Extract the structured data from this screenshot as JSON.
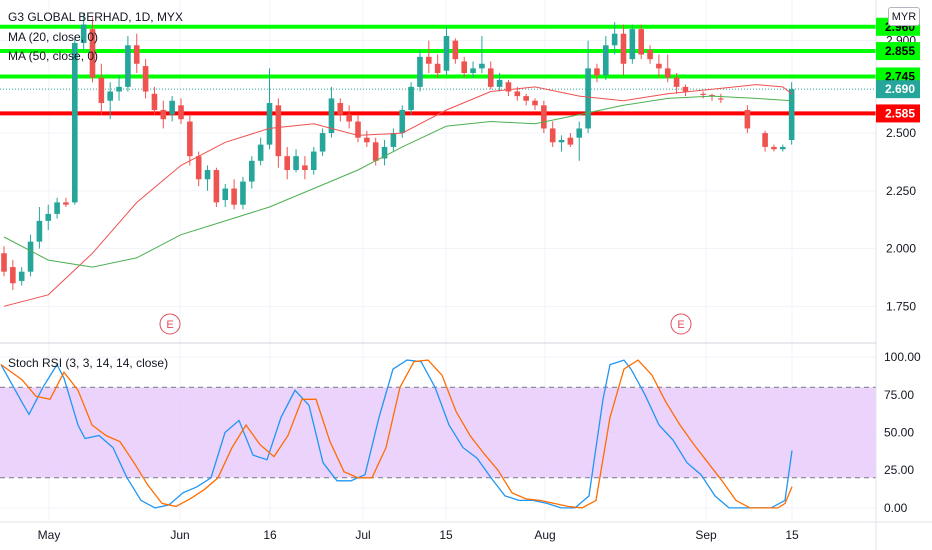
{
  "header": {
    "title": "G3 GLOBAL BERHAD, 1D, MYX",
    "ma20_label": "MA (20, close, 0)",
    "ma50_label": "MA (50, close, 0)",
    "currency": "MYR",
    "rsi_label": "Stoch RSI (3, 3, 14, 14, close)"
  },
  "colors": {
    "up": "#26a69a",
    "down": "#ef5350",
    "ma20": "#f0504f",
    "ma50": "#4caf50",
    "green_level": "#00ff00",
    "red_level": "#ff0000",
    "rsi_k": "#2196f3",
    "rsi_d": "#ff6d00",
    "rsi_band": "#e6c8fb",
    "grid": "#f0f3fa",
    "axis": "#e0e3eb"
  },
  "chart_data": [
    {
      "type": "candlestick",
      "title": "G3 GLOBAL BERHAD, 1D, MYX",
      "y_ticks": [
        "1.750",
        "2.000",
        "2.250",
        "2.500",
        "2.750",
        "2.900"
      ],
      "ylim": [
        1.6,
        3.05
      ],
      "x_ticks": [
        "May",
        "Jun",
        "16",
        "Jul",
        "15",
        "Aug",
        "Sep",
        "15"
      ],
      "price_levels": [
        {
          "label": "2.960",
          "value": 2.96,
          "color": "#00ff00"
        },
        {
          "label": "2.855",
          "value": 2.855,
          "color": "#00ff00"
        },
        {
          "label": "2.745",
          "value": 2.745,
          "color": "#00ff00"
        },
        {
          "label": "2.585",
          "value": 2.585,
          "color": "#ff0000"
        }
      ],
      "last_price": {
        "label": "2.690",
        "value": 2.69
      },
      "earnings_markers": [
        "E",
        "E"
      ],
      "candles": [
        [
          1.98,
          2.01,
          1.88,
          1.9
        ],
        [
          1.92,
          1.95,
          1.82,
          1.85
        ],
        [
          1.86,
          1.92,
          1.84,
          1.9
        ],
        [
          1.9,
          2.06,
          1.88,
          2.03
        ],
        [
          2.03,
          2.18,
          2.0,
          2.12
        ],
        [
          2.12,
          2.19,
          2.08,
          2.15
        ],
        [
          2.15,
          2.22,
          2.13,
          2.2
        ],
        [
          2.2,
          2.22,
          2.18,
          2.19
        ],
        [
          2.2,
          2.92,
          2.19,
          2.89
        ],
        [
          2.89,
          3.02,
          2.86,
          2.97
        ],
        [
          2.95,
          3.0,
          2.72,
          2.74
        ],
        [
          2.74,
          2.8,
          2.58,
          2.63
        ],
        [
          2.64,
          2.72,
          2.56,
          2.68
        ],
        [
          2.68,
          2.75,
          2.64,
          2.7
        ],
        [
          2.7,
          2.92,
          2.68,
          2.88
        ],
        [
          2.88,
          2.93,
          2.76,
          2.8
        ],
        [
          2.79,
          2.82,
          2.65,
          2.68
        ],
        [
          2.67,
          2.7,
          2.58,
          2.6
        ],
        [
          2.6,
          2.64,
          2.52,
          2.56
        ],
        [
          2.58,
          2.66,
          2.55,
          2.64
        ],
        [
          2.62,
          2.65,
          2.54,
          2.56
        ],
        [
          2.55,
          2.58,
          2.36,
          2.4
        ],
        [
          2.4,
          2.42,
          2.27,
          2.3
        ],
        [
          2.3,
          2.36,
          2.25,
          2.34
        ],
        [
          2.34,
          2.35,
          2.18,
          2.2
        ],
        [
          2.21,
          2.28,
          2.18,
          2.26
        ],
        [
          2.26,
          2.3,
          2.17,
          2.19
        ],
        [
          2.19,
          2.31,
          2.17,
          2.29
        ],
        [
          2.29,
          2.4,
          2.26,
          2.38
        ],
        [
          2.38,
          2.48,
          2.36,
          2.45
        ],
        [
          2.45,
          2.78,
          2.43,
          2.63
        ],
        [
          2.62,
          2.65,
          2.35,
          2.4
        ],
        [
          2.4,
          2.44,
          2.3,
          2.34
        ],
        [
          2.34,
          2.43,
          2.33,
          2.4
        ],
        [
          2.36,
          2.4,
          2.3,
          2.34
        ],
        [
          2.34,
          2.44,
          2.32,
          2.42
        ],
        [
          2.42,
          2.52,
          2.4,
          2.5
        ],
        [
          2.5,
          2.7,
          2.48,
          2.65
        ],
        [
          2.63,
          2.65,
          2.55,
          2.58
        ],
        [
          2.58,
          2.62,
          2.52,
          2.55
        ],
        [
          2.55,
          2.58,
          2.46,
          2.48
        ],
        [
          2.48,
          2.51,
          2.44,
          2.46
        ],
        [
          2.46,
          2.48,
          2.36,
          2.38
        ],
        [
          2.39,
          2.47,
          2.36,
          2.44
        ],
        [
          2.44,
          2.52,
          2.42,
          2.5
        ],
        [
          2.5,
          2.62,
          2.48,
          2.6
        ],
        [
          2.6,
          2.72,
          2.58,
          2.7
        ],
        [
          2.7,
          2.86,
          2.68,
          2.83
        ],
        [
          2.83,
          2.9,
          2.76,
          2.8
        ],
        [
          2.8,
          2.84,
          2.74,
          2.76
        ],
        [
          2.77,
          2.96,
          2.75,
          2.92
        ],
        [
          2.9,
          2.91,
          2.8,
          2.82
        ],
        [
          2.81,
          2.83,
          2.74,
          2.76
        ],
        [
          2.76,
          2.81,
          2.74,
          2.78
        ],
        [
          2.78,
          2.92,
          2.76,
          2.8
        ],
        [
          2.78,
          2.81,
          2.69,
          2.7
        ],
        [
          2.7,
          2.76,
          2.68,
          2.73
        ],
        [
          2.72,
          2.73,
          2.66,
          2.68
        ],
        [
          2.68,
          2.7,
          2.64,
          2.66
        ],
        [
          2.66,
          2.67,
          2.62,
          2.64
        ],
        [
          2.64,
          2.65,
          2.6,
          2.62
        ],
        [
          2.62,
          2.64,
          2.5,
          2.52
        ],
        [
          2.52,
          2.55,
          2.44,
          2.46
        ],
        [
          2.46,
          2.49,
          2.42,
          2.47
        ],
        [
          2.48,
          2.5,
          2.44,
          2.45
        ],
        [
          2.48,
          2.55,
          2.38,
          2.52
        ],
        [
          2.52,
          2.9,
          2.5,
          2.78
        ],
        [
          2.78,
          2.8,
          2.72,
          2.75
        ],
        [
          2.75,
          2.92,
          2.73,
          2.88
        ],
        [
          2.88,
          2.98,
          2.84,
          2.93
        ],
        [
          2.93,
          2.97,
          2.75,
          2.8
        ],
        [
          2.82,
          2.97,
          2.8,
          2.95
        ],
        [
          2.95,
          2.97,
          2.82,
          2.84
        ],
        [
          2.86,
          2.88,
          2.8,
          2.82
        ],
        [
          2.8,
          2.84,
          2.74,
          2.78
        ],
        [
          2.78,
          2.84,
          2.72,
          2.74
        ],
        [
          2.74,
          2.76,
          2.67,
          2.7
        ],
        [
          2.7,
          2.71,
          2.66,
          2.68
        ],
        [
          null,
          null,
          null,
          null
        ],
        [
          2.67,
          2.68,
          2.65,
          2.665
        ],
        [
          2.665,
          2.67,
          2.64,
          2.66
        ],
        [
          2.65,
          2.67,
          2.63,
          2.645
        ],
        [
          null,
          null,
          null,
          null
        ],
        [
          null,
          null,
          null,
          null
        ],
        [
          2.6,
          2.62,
          2.5,
          2.52
        ],
        [
          null,
          null,
          null,
          null
        ],
        [
          2.5,
          2.51,
          2.42,
          2.44
        ],
        [
          2.44,
          2.45,
          2.42,
          2.43
        ],
        [
          2.43,
          2.45,
          2.42,
          2.44
        ],
        [
          2.47,
          2.72,
          2.45,
          2.69
        ]
      ],
      "ma20": [
        [
          0,
          1.75
        ],
        [
          5,
          1.8
        ],
        [
          10,
          1.98
        ],
        [
          15,
          2.2
        ],
        [
          20,
          2.36
        ],
        [
          25,
          2.46
        ],
        [
          30,
          2.52
        ],
        [
          35,
          2.54
        ],
        [
          40,
          2.49
        ],
        [
          45,
          2.5
        ],
        [
          50,
          2.6
        ],
        [
          55,
          2.68
        ],
        [
          60,
          2.7
        ],
        [
          65,
          2.66
        ],
        [
          70,
          2.64
        ],
        [
          75,
          2.67
        ],
        [
          80,
          2.69
        ],
        [
          85,
          2.71
        ],
        [
          88,
          2.7
        ],
        [
          89,
          2.67
        ]
      ],
      "ma50": [
        [
          0,
          2.05
        ],
        [
          5,
          1.95
        ],
        [
          10,
          1.92
        ],
        [
          15,
          1.96
        ],
        [
          20,
          2.06
        ],
        [
          25,
          2.12
        ],
        [
          30,
          2.18
        ],
        [
          35,
          2.26
        ],
        [
          40,
          2.34
        ],
        [
          45,
          2.44
        ],
        [
          50,
          2.53
        ],
        [
          55,
          2.55
        ],
        [
          60,
          2.54
        ],
        [
          65,
          2.58
        ],
        [
          70,
          2.62
        ],
        [
          75,
          2.65
        ],
        [
          80,
          2.66
        ],
        [
          85,
          2.65
        ],
        [
          89,
          2.64
        ]
      ]
    },
    {
      "type": "line",
      "title": "Stoch RSI (3, 3, 14, 14, close)",
      "y_ticks": [
        "0.00",
        "25.00",
        "50.00",
        "75.00",
        "100.00"
      ],
      "ylim": [
        -8,
        108
      ],
      "bands": {
        "upper": 80,
        "lower": 20
      },
      "series": [
        {
          "name": "K",
          "values": [
            [
              0,
              95
            ],
            [
              3,
              70
            ],
            [
              4,
              62
            ],
            [
              6,
              80
            ],
            [
              8,
              95
            ],
            [
              9,
              86
            ],
            [
              11,
              55
            ],
            [
              12,
              46
            ],
            [
              14,
              48
            ],
            [
              16,
              40
            ],
            [
              18,
              20
            ],
            [
              20,
              5
            ],
            [
              22,
              0
            ],
            [
              24,
              2
            ],
            [
              26,
              10
            ],
            [
              28,
              14
            ],
            [
              30,
              20
            ],
            [
              32,
              50
            ],
            [
              34,
              58
            ],
            [
              36,
              35
            ],
            [
              38,
              32
            ],
            [
              40,
              60
            ],
            [
              42,
              78
            ],
            [
              44,
              68
            ],
            [
              46,
              30
            ],
            [
              48,
              18
            ],
            [
              50,
              18
            ],
            [
              52,
              22
            ],
            [
              54,
              60
            ],
            [
              56,
              92
            ],
            [
              58,
              98
            ],
            [
              60,
              97
            ],
            [
              62,
              80
            ],
            [
              64,
              55
            ],
            [
              66,
              40
            ],
            [
              68,
              33
            ],
            [
              70,
              20
            ],
            [
              72,
              8
            ],
            [
              74,
              5
            ],
            [
              76,
              5
            ],
            [
              78,
              3
            ],
            [
              80,
              0
            ],
            [
              82,
              0
            ],
            [
              84,
              8
            ],
            [
              86,
              72
            ],
            [
              87,
              95
            ],
            [
              89,
              98
            ],
            [
              90,
              92
            ],
            [
              92,
              75
            ],
            [
              94,
              55
            ],
            [
              96,
              45
            ],
            [
              98,
              30
            ],
            [
              100,
              22
            ],
            [
              102,
              8
            ],
            [
              104,
              0
            ],
            [
              106,
              0
            ],
            [
              108,
              0
            ],
            [
              110,
              0
            ],
            [
              112,
              5
            ],
            [
              113,
              38
            ]
          ]
        },
        {
          "name": "D",
          "values": [
            [
              0,
              95
            ],
            [
              3,
              85
            ],
            [
              5,
              74
            ],
            [
              7,
              72
            ],
            [
              9,
              90
            ],
            [
              11,
              78
            ],
            [
              13,
              55
            ],
            [
              15,
              48
            ],
            [
              17,
              44
            ],
            [
              19,
              30
            ],
            [
              21,
              15
            ],
            [
              23,
              3
            ],
            [
              25,
              1
            ],
            [
              27,
              6
            ],
            [
              29,
              12
            ],
            [
              31,
              20
            ],
            [
              33,
              40
            ],
            [
              35,
              55
            ],
            [
              37,
              42
            ],
            [
              39,
              34
            ],
            [
              41,
              48
            ],
            [
              43,
              72
            ],
            [
              45,
              72
            ],
            [
              47,
              44
            ],
            [
              49,
              24
            ],
            [
              51,
              20
            ],
            [
              53,
              20
            ],
            [
              55,
              40
            ],
            [
              57,
              80
            ],
            [
              59,
              97
            ],
            [
              61,
              98
            ],
            [
              63,
              88
            ],
            [
              65,
              64
            ],
            [
              67,
              48
            ],
            [
              69,
              36
            ],
            [
              71,
              25
            ],
            [
              73,
              10
            ],
            [
              75,
              6
            ],
            [
              77,
              5
            ],
            [
              79,
              3
            ],
            [
              81,
              1
            ],
            [
              83,
              0
            ],
            [
              85,
              5
            ],
            [
              87,
              60
            ],
            [
              89,
              92
            ],
            [
              91,
              98
            ],
            [
              93,
              88
            ],
            [
              95,
              70
            ],
            [
              97,
              55
            ],
            [
              99,
              42
            ],
            [
              101,
              30
            ],
            [
              103,
              18
            ],
            [
              105,
              5
            ],
            [
              107,
              0
            ],
            [
              109,
              0
            ],
            [
              111,
              0
            ],
            [
              112,
              3
            ],
            [
              113,
              14
            ]
          ]
        }
      ]
    }
  ]
}
